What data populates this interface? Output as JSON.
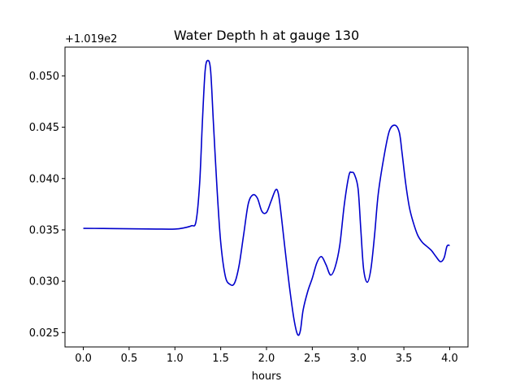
{
  "chart_data": {
    "type": "line",
    "title": "Water Depth h at gauge 130",
    "xlabel": "hours",
    "ylabel": "",
    "offset_text": "+1.019e2",
    "xlim": [
      -0.2,
      4.2
    ],
    "ylim": [
      0.0236,
      0.0528
    ],
    "x_ticks": [
      0.0,
      0.5,
      1.0,
      1.5,
      2.0,
      2.5,
      3.0,
      3.5,
      4.0
    ],
    "x_tick_labels": [
      "0.0",
      "0.5",
      "1.0",
      "1.5",
      "2.0",
      "2.5",
      "3.0",
      "3.5",
      "4.0"
    ],
    "y_ticks": [
      0.025,
      0.03,
      0.035,
      0.04,
      0.045,
      0.05
    ],
    "y_tick_labels": [
      "0.025",
      "0.030",
      "0.035",
      "0.040",
      "0.045",
      "0.050"
    ],
    "grid": false,
    "series": [
      {
        "color": "#0000cc",
        "x": [
          0.0,
          0.2,
          0.4,
          0.6,
          0.8,
          1.0,
          1.1,
          1.18,
          1.23,
          1.27,
          1.3,
          1.33,
          1.36,
          1.39,
          1.42,
          1.46,
          1.5,
          1.55,
          1.6,
          1.65,
          1.7,
          1.75,
          1.8,
          1.85,
          1.9,
          1.95,
          2.0,
          2.05,
          2.1,
          2.13,
          2.16,
          2.2,
          2.25,
          2.3,
          2.34,
          2.37,
          2.4,
          2.45,
          2.5,
          2.55,
          2.6,
          2.65,
          2.7,
          2.75,
          2.8,
          2.85,
          2.9,
          2.93,
          2.96,
          3.0,
          3.03,
          3.06,
          3.1,
          3.14,
          3.18,
          3.22,
          3.28,
          3.34,
          3.4,
          3.45,
          3.48,
          3.52,
          3.56,
          3.6,
          3.65,
          3.7,
          3.75,
          3.8,
          3.85,
          3.9,
          3.94,
          3.97,
          4.0
        ],
        "y": [
          0.03515,
          0.03514,
          0.03512,
          0.0351,
          0.03508,
          0.03508,
          0.0352,
          0.0354,
          0.0358,
          0.0395,
          0.0455,
          0.0505,
          0.0515,
          0.0505,
          0.0455,
          0.039,
          0.0338,
          0.0305,
          0.0297,
          0.0298,
          0.0315,
          0.0345,
          0.0375,
          0.0384,
          0.0381,
          0.0368,
          0.0367,
          0.0378,
          0.0389,
          0.0385,
          0.0365,
          0.0333,
          0.0295,
          0.0263,
          0.0248,
          0.0252,
          0.0272,
          0.029,
          0.0303,
          0.0318,
          0.0324,
          0.0316,
          0.0306,
          0.0314,
          0.0335,
          0.0375,
          0.0403,
          0.0406,
          0.0404,
          0.039,
          0.035,
          0.0312,
          0.0299,
          0.0312,
          0.0345,
          0.0385,
          0.042,
          0.0446,
          0.0452,
          0.0445,
          0.0425,
          0.0395,
          0.0372,
          0.0358,
          0.0345,
          0.0338,
          0.0334,
          0.033,
          0.0324,
          0.0319,
          0.0323,
          0.0334,
          0.0335
        ]
      }
    ]
  }
}
